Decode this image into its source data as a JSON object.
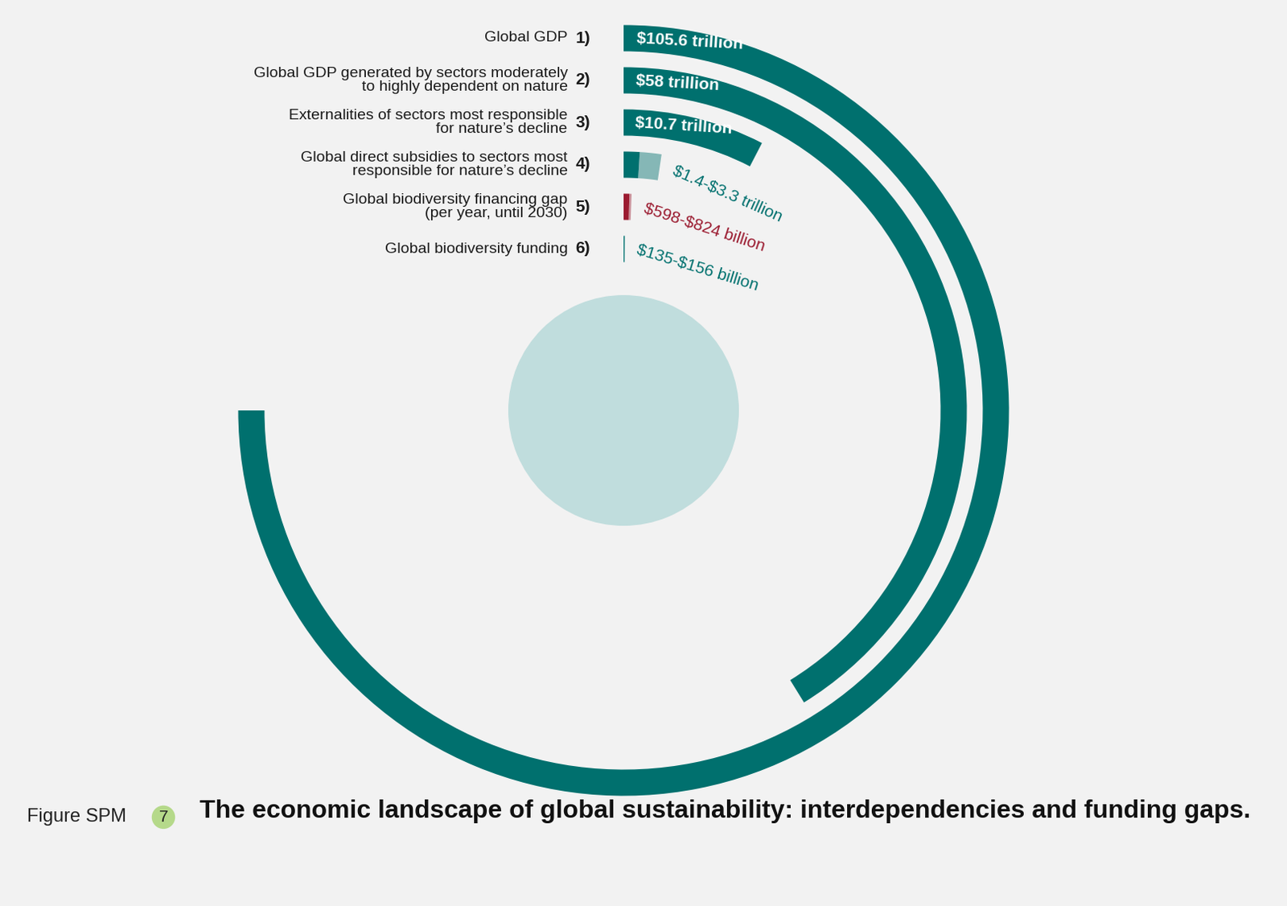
{
  "chart_data": {
    "type": "radial_bar",
    "title": "The economic landscape of global sustainability: interdependencies and funding gaps.",
    "figure_label": "Figure SPM",
    "figure_number": "7",
    "categories": [
      "Global GDP",
      "Global GDP generated by sectors moderately\nto highly dependent on nature",
      "Externalities of sectors most responsible\nfor nature’s decline",
      "Global direct subsidies to sectors most\nresponsible for nature’s decline",
      "Global biodiversity financing gap\n(per year, until 2030)",
      "Global biodiversity funding"
    ],
    "numbers": [
      "1)",
      "2)",
      "3)",
      "4)",
      "5)",
      "6)"
    ],
    "values": [
      105.6,
      58,
      10.7,
      1.4,
      0.598,
      0.135
    ],
    "values_high": [
      null,
      null,
      null,
      3.3,
      0.824,
      0.156
    ],
    "value_labels": [
      "$105.6 trillion",
      "$58 trillion",
      "$10.7 trillion",
      "$1.4-$3.3 trillion",
      "$598-$824 billion",
      "$135-$156 billion"
    ],
    "colors": [
      "#00706e",
      "#00706e",
      "#00706e",
      "#00706e",
      "#9b1b30",
      "#00706e"
    ],
    "data_labels": true,
    "tick_labels": false
  }
}
